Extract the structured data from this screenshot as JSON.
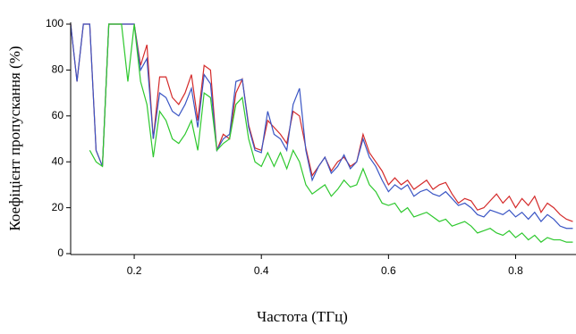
{
  "chart_data": {
    "type": "line",
    "xlabel": "Частота (ТГц)",
    "ylabel": "Коефіцієнт пропускання (%)",
    "x": [
      0.1,
      0.11,
      0.12,
      0.13,
      0.14,
      0.15,
      0.16,
      0.17,
      0.18,
      0.19,
      0.2,
      0.21,
      0.22,
      0.23,
      0.24,
      0.25,
      0.26,
      0.27,
      0.28,
      0.29,
      0.3,
      0.31,
      0.32,
      0.33,
      0.34,
      0.35,
      0.36,
      0.37,
      0.38,
      0.39,
      0.4,
      0.41,
      0.42,
      0.43,
      0.44,
      0.45,
      0.46,
      0.47,
      0.48,
      0.49,
      0.5,
      0.51,
      0.52,
      0.53,
      0.54,
      0.55,
      0.56,
      0.57,
      0.58,
      0.59,
      0.6,
      0.61,
      0.62,
      0.63,
      0.64,
      0.65,
      0.66,
      0.67,
      0.68,
      0.69,
      0.7,
      0.71,
      0.72,
      0.73,
      0.74,
      0.75,
      0.76,
      0.77,
      0.78,
      0.79,
      0.8,
      0.81,
      0.82,
      0.83,
      0.84,
      0.85,
      0.86,
      0.87,
      0.88,
      0.89
    ],
    "series": [
      {
        "color": "#d42a2a",
        "values": [
          100,
          75,
          100,
          100,
          45,
          38,
          100,
          100,
          100,
          100,
          100,
          82,
          91,
          50,
          77,
          77,
          68,
          65,
          70,
          78,
          58,
          82,
          80,
          45,
          52,
          50,
          70,
          76,
          56,
          46,
          45,
          58,
          55,
          52,
          48,
          62,
          60,
          46,
          34,
          38,
          42,
          36,
          40,
          42,
          38,
          40,
          52,
          44,
          40,
          36,
          30,
          33,
          30,
          32,
          28,
          30,
          32,
          28,
          30,
          31,
          26,
          22,
          24,
          23,
          19,
          20,
          23,
          26,
          22,
          25,
          20,
          24,
          21,
          25,
          18,
          22,
          20,
          17,
          15,
          14
        ]
      },
      {
        "color": "#3a55c4",
        "values": [
          100,
          75,
          100,
          100,
          45,
          38,
          100,
          100,
          100,
          100,
          100,
          80,
          85,
          50,
          70,
          68,
          62,
          60,
          65,
          72,
          55,
          78,
          74,
          45,
          50,
          52,
          75,
          76,
          55,
          45,
          44,
          62,
          52,
          50,
          45,
          65,
          72,
          45,
          32,
          38,
          42,
          35,
          38,
          43,
          37,
          40,
          50,
          42,
          38,
          32,
          27,
          30,
          28,
          30,
          25,
          27,
          28,
          26,
          25,
          27,
          24,
          21,
          22,
          20,
          17,
          16,
          19,
          18,
          17,
          19,
          16,
          18,
          15,
          18,
          14,
          17,
          15,
          12,
          11,
          11
        ]
      },
      {
        "color": "#2ec82e",
        "values": [
          null,
          null,
          null,
          45,
          40,
          38,
          100,
          100,
          100,
          75,
          100,
          75,
          65,
          42,
          62,
          58,
          50,
          48,
          52,
          58,
          45,
          70,
          68,
          45,
          48,
          50,
          65,
          68,
          50,
          40,
          38,
          44,
          38,
          44,
          37,
          45,
          40,
          30,
          26,
          28,
          30,
          25,
          28,
          32,
          29,
          30,
          37,
          30,
          27,
          22,
          21,
          22,
          18,
          20,
          16,
          17,
          18,
          16,
          14,
          15,
          12,
          13,
          14,
          12,
          9,
          10,
          11,
          9,
          8,
          10,
          7,
          9,
          6,
          8,
          5,
          7,
          6,
          6,
          5,
          5
        ]
      }
    ],
    "xlim": [
      0.1,
      0.895
    ],
    "ylim": [
      0,
      100
    ],
    "xticks": [
      0.2,
      0.4,
      0.6,
      0.8
    ],
    "yticks": [
      0,
      20,
      40,
      60,
      80,
      100
    ]
  }
}
